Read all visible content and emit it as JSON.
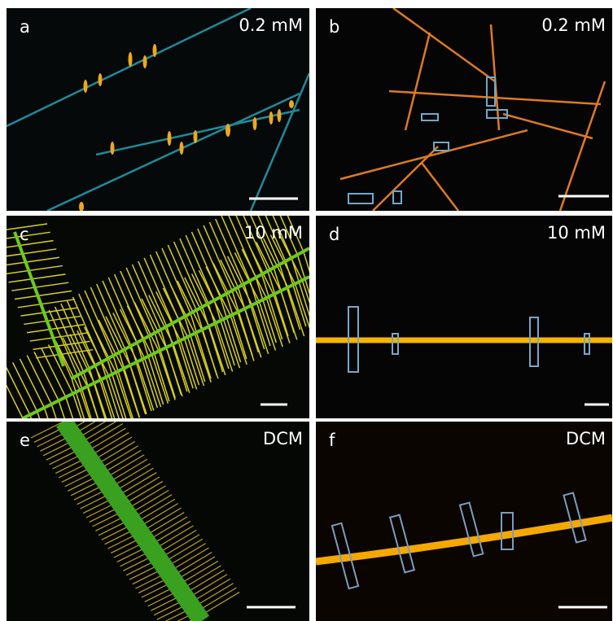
{
  "panels": [
    {
      "label": "a",
      "condition": "0.2 mM"
    },
    {
      "label": "b",
      "condition": "0.2 mM"
    },
    {
      "label": "c",
      "condition": "10 mM"
    },
    {
      "label": "d",
      "condition": "10 mM"
    },
    {
      "label": "e",
      "condition": "DCM"
    },
    {
      "label": "f",
      "condition": "DCM"
    }
  ]
}
